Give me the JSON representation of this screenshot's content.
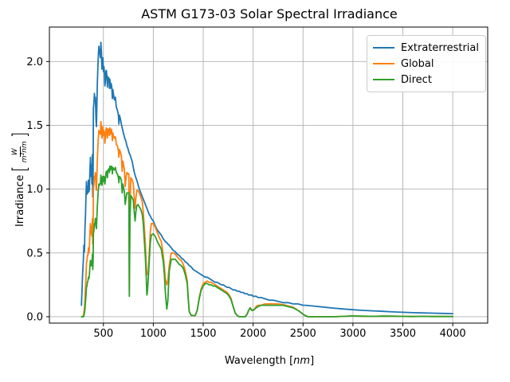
{
  "figure": {
    "xlabel_prefix": "Wavelength [",
    "xlabel_unit": "nm",
    "xlabel_suffix": "]",
    "ylabel_prefix": "Irradiance",
    "ylabel_open": "[",
    "ylabel_unit_num": "W",
    "ylabel_unit_den": "m²nm",
    "ylabel_close": "]",
    "background_color": "#ffffff",
    "grid_color": "#b0b0b0",
    "spine_color": "#000000"
  },
  "chart_data": {
    "type": "line",
    "title": "ASTM G173-03 Solar Spectral Irradiance",
    "xlabel": "Wavelength [nm]",
    "ylabel": "Irradiance [W/(m²·nm)]",
    "xlim": [
      -41,
      4350
    ],
    "ylim": [
      -0.05,
      2.27
    ],
    "x_ticks": [
      500,
      1000,
      1500,
      2000,
      2500,
      3000,
      3500,
      4000
    ],
    "y_ticks": [
      0.0,
      0.5,
      1.0,
      1.5,
      2.0
    ],
    "y_tick_labels": [
      "0.0",
      "0.5",
      "1.0",
      "1.5",
      "2.0"
    ],
    "grid": true,
    "legend_position": "upper right",
    "columns": [
      "wavelength_nm",
      "extraterrestrial",
      "global",
      "direct"
    ],
    "series": [
      {
        "name": "Extraterrestrial",
        "color": "#1f77b4",
        "column": 1
      },
      {
        "name": "Global",
        "color": "#ff7f0e",
        "column": 2
      },
      {
        "name": "Direct",
        "color": "#2ca02c",
        "column": 3
      }
    ],
    "points": [
      [
        280,
        0.09,
        0,
        0
      ],
      [
        290,
        0.31,
        0,
        0
      ],
      [
        300,
        0.46,
        0.01,
        0
      ],
      [
        305,
        0.56,
        0.03,
        0.01
      ],
      [
        310,
        0.51,
        0.07,
        0.03
      ],
      [
        315,
        0.69,
        0.13,
        0.06
      ],
      [
        320,
        0.78,
        0.22,
        0.11
      ],
      [
        325,
        0.92,
        0.3,
        0.16
      ],
      [
        330,
        1.06,
        0.42,
        0.23
      ],
      [
        335,
        0.96,
        0.44,
        0.24
      ],
      [
        340,
        1.02,
        0.48,
        0.27
      ],
      [
        345,
        0.97,
        0.48,
        0.28
      ],
      [
        350,
        1.07,
        0.54,
        0.31
      ],
      [
        355,
        0.98,
        0.5,
        0.3
      ],
      [
        360,
        1.0,
        0.55,
        0.33
      ],
      [
        365,
        1.16,
        0.66,
        0.4
      ],
      [
        370,
        1.25,
        0.73,
        0.44
      ],
      [
        375,
        1.1,
        0.65,
        0.4
      ],
      [
        380,
        1.19,
        0.71,
        0.44
      ],
      [
        385,
        1.04,
        0.63,
        0.4
      ],
      [
        390,
        1.27,
        0.77,
        0.49
      ],
      [
        393,
        0.94,
        0.57,
        0.37
      ],
      [
        397,
        1.15,
        0.7,
        0.45
      ],
      [
        400,
        1.63,
        1.0,
        0.65
      ],
      [
        405,
        1.68,
        1.04,
        0.68
      ],
      [
        410,
        1.75,
        1.1,
        0.73
      ],
      [
        415,
        1.7,
        1.09,
        0.73
      ],
      [
        420,
        1.72,
        1.13,
        0.77
      ],
      [
        425,
        1.56,
        1.03,
        0.71
      ],
      [
        430,
        1.49,
        0.99,
        0.69
      ],
      [
        435,
        1.66,
        1.11,
        0.78
      ],
      [
        440,
        1.84,
        1.24,
        0.87
      ],
      [
        445,
        1.97,
        1.34,
        0.95
      ],
      [
        450,
        2.06,
        1.41,
        1.0
      ],
      [
        455,
        2.12,
        1.46,
        1.04
      ],
      [
        460,
        2.07,
        1.44,
        1.03
      ],
      [
        465,
        2.06,
        1.45,
        1.04
      ],
      [
        470,
        2.03,
        1.43,
        1.04
      ],
      [
        475,
        2.15,
        1.53,
        1.11
      ],
      [
        480,
        2.07,
        1.48,
        1.08
      ],
      [
        485,
        1.94,
        1.4,
        1.03
      ],
      [
        490,
        1.97,
        1.43,
        1.06
      ],
      [
        495,
        2.03,
        1.49,
        1.1
      ],
      [
        500,
        1.92,
        1.42,
        1.06
      ],
      [
        505,
        1.96,
        1.46,
        1.1
      ],
      [
        510,
        1.92,
        1.44,
        1.09
      ],
      [
        515,
        1.81,
        1.36,
        1.04
      ],
      [
        520,
        1.85,
        1.4,
        1.08
      ],
      [
        525,
        1.92,
        1.46,
        1.12
      ],
      [
        530,
        1.93,
        1.48,
        1.14
      ],
      [
        535,
        1.89,
        1.46,
        1.13
      ],
      [
        540,
        1.8,
        1.4,
        1.09
      ],
      [
        545,
        1.88,
        1.47,
        1.15
      ],
      [
        550,
        1.87,
        1.46,
        1.15
      ],
      [
        555,
        1.87,
        1.47,
        1.16
      ],
      [
        560,
        1.79,
        1.42,
        1.13
      ],
      [
        565,
        1.86,
        1.48,
        1.18
      ],
      [
        570,
        1.79,
        1.43,
        1.15
      ],
      [
        575,
        1.83,
        1.46,
        1.17
      ],
      [
        580,
        1.82,
        1.47,
        1.18
      ],
      [
        585,
        1.79,
        1.44,
        1.17
      ],
      [
        590,
        1.71,
        1.38,
        1.12
      ],
      [
        595,
        1.78,
        1.44,
        1.17
      ],
      [
        600,
        1.75,
        1.42,
        1.16
      ],
      [
        610,
        1.7,
        1.4,
        1.15
      ],
      [
        620,
        1.72,
        1.41,
        1.17
      ],
      [
        630,
        1.64,
        1.35,
        1.13
      ],
      [
        640,
        1.62,
        1.34,
        1.12
      ],
      [
        650,
        1.58,
        1.3,
        1.09
      ],
      [
        655,
        1.51,
        1.25,
        1.05
      ],
      [
        660,
        1.58,
        1.31,
        1.1
      ],
      [
        670,
        1.55,
        1.29,
        1.09
      ],
      [
        680,
        1.51,
        1.26,
        1.07
      ],
      [
        688,
        1.48,
        1.14,
        0.97
      ],
      [
        695,
        1.46,
        1.22,
        1.04
      ],
      [
        700,
        1.44,
        1.2,
        1.02
      ],
      [
        710,
        1.41,
        1.15,
        0.98
      ],
      [
        718,
        1.39,
        1.02,
        0.88
      ],
      [
        727,
        1.37,
        1.09,
        0.93
      ],
      [
        735,
        1.34,
        1.13,
        0.97
      ],
      [
        745,
        1.32,
        1.12,
        0.97
      ],
      [
        755,
        1.29,
        1.12,
        0.97
      ],
      [
        760,
        1.28,
        0.21,
        0.16
      ],
      [
        766,
        1.27,
        0.9,
        0.78
      ],
      [
        775,
        1.25,
        1.09,
        0.95
      ],
      [
        790,
        1.21,
        1.07,
        0.93
      ],
      [
        800,
        1.17,
        1.04,
        0.91
      ],
      [
        810,
        1.13,
        0.92,
        0.81
      ],
      [
        817,
        1.11,
        0.85,
        0.75
      ],
      [
        825,
        1.09,
        0.93,
        0.82
      ],
      [
        835,
        1.07,
        0.99,
        0.87
      ],
      [
        845,
        1.04,
        0.99,
        0.88
      ],
      [
        860,
        1.0,
        0.97,
        0.86
      ],
      [
        875,
        0.97,
        0.94,
        0.84
      ],
      [
        890,
        0.94,
        0.9,
        0.8
      ],
      [
        900,
        0.92,
        0.81,
        0.72
      ],
      [
        910,
        0.9,
        0.7,
        0.6
      ],
      [
        920,
        0.88,
        0.57,
        0.47
      ],
      [
        930,
        0.86,
        0.39,
        0.3
      ],
      [
        935,
        0.85,
        0.35,
        0.17
      ],
      [
        940,
        0.84,
        0.33,
        0.19
      ],
      [
        950,
        0.82,
        0.35,
        0.3
      ],
      [
        960,
        0.8,
        0.51,
        0.45
      ],
      [
        970,
        0.79,
        0.66,
        0.58
      ],
      [
        980,
        0.77,
        0.73,
        0.64
      ],
      [
        1000,
        0.75,
        0.73,
        0.65
      ],
      [
        1020,
        0.71,
        0.7,
        0.63
      ],
      [
        1040,
        0.68,
        0.66,
        0.59
      ],
      [
        1060,
        0.66,
        0.62,
        0.56
      ],
      [
        1080,
        0.64,
        0.59,
        0.53
      ],
      [
        1100,
        0.61,
        0.48,
        0.43
      ],
      [
        1110,
        0.6,
        0.4,
        0.34
      ],
      [
        1120,
        0.59,
        0.3,
        0.2
      ],
      [
        1135,
        0.58,
        0.25,
        0.06
      ],
      [
        1145,
        0.57,
        0.28,
        0.12
      ],
      [
        1160,
        0.56,
        0.4,
        0.36
      ],
      [
        1180,
        0.54,
        0.5,
        0.45
      ],
      [
        1200,
        0.52,
        0.5,
        0.45
      ],
      [
        1220,
        0.51,
        0.49,
        0.45
      ],
      [
        1240,
        0.49,
        0.47,
        0.43
      ],
      [
        1260,
        0.48,
        0.45,
        0.41
      ],
      [
        1280,
        0.46,
        0.44,
        0.4
      ],
      [
        1300,
        0.45,
        0.41,
        0.38
      ],
      [
        1320,
        0.43,
        0.36,
        0.33
      ],
      [
        1340,
        0.42,
        0.28,
        0.26
      ],
      [
        1350,
        0.41,
        0.15,
        0.14
      ],
      [
        1360,
        0.4,
        0.04,
        0.04
      ],
      [
        1380,
        0.39,
        0.01,
        0.01
      ],
      [
        1400,
        0.37,
        0.01,
        0.01
      ],
      [
        1420,
        0.36,
        0.01,
        0.01
      ],
      [
        1440,
        0.35,
        0.05,
        0.05
      ],
      [
        1460,
        0.34,
        0.15,
        0.14
      ],
      [
        1480,
        0.33,
        0.22,
        0.21
      ],
      [
        1500,
        0.32,
        0.26,
        0.24
      ],
      [
        1520,
        0.31,
        0.27,
        0.26
      ],
      [
        1540,
        0.31,
        0.28,
        0.26
      ],
      [
        1560,
        0.3,
        0.27,
        0.25
      ],
      [
        1580,
        0.29,
        0.27,
        0.25
      ],
      [
        1600,
        0.28,
        0.26,
        0.24
      ],
      [
        1620,
        0.27,
        0.25,
        0.24
      ],
      [
        1640,
        0.27,
        0.24,
        0.23
      ],
      [
        1660,
        0.26,
        0.23,
        0.22
      ],
      [
        1680,
        0.25,
        0.22,
        0.21
      ],
      [
        1700,
        0.25,
        0.21,
        0.2
      ],
      [
        1720,
        0.24,
        0.2,
        0.19
      ],
      [
        1740,
        0.23,
        0.19,
        0.18
      ],
      [
        1760,
        0.23,
        0.17,
        0.16
      ],
      [
        1780,
        0.22,
        0.14,
        0.13
      ],
      [
        1800,
        0.21,
        0.08,
        0.08
      ],
      [
        1820,
        0.21,
        0.03,
        0.03
      ],
      [
        1840,
        0.2,
        0.01,
        0.01
      ],
      [
        1860,
        0.2,
        0,
        0
      ],
      [
        1880,
        0.19,
        0,
        0
      ],
      [
        1900,
        0.19,
        0,
        0
      ],
      [
        1920,
        0.18,
        0,
        0
      ],
      [
        1940,
        0.18,
        0.02,
        0.02
      ],
      [
        1955,
        0.17,
        0.05,
        0.05
      ],
      [
        1970,
        0.17,
        0.07,
        0.07
      ],
      [
        1985,
        0.17,
        0.055,
        0.05
      ],
      [
        2000,
        0.16,
        0.05,
        0.05
      ],
      [
        2015,
        0.16,
        0.06,
        0.06
      ],
      [
        2030,
        0.16,
        0.08,
        0.07
      ],
      [
        2050,
        0.15,
        0.09,
        0.08
      ],
      [
        2080,
        0.15,
        0.09,
        0.09
      ],
      [
        2120,
        0.14,
        0.1,
        0.09
      ],
      [
        2160,
        0.13,
        0.1,
        0.09
      ],
      [
        2200,
        0.13,
        0.1,
        0.09
      ],
      [
        2250,
        0.12,
        0.1,
        0.09
      ],
      [
        2300,
        0.11,
        0.095,
        0.09
      ],
      [
        2350,
        0.11,
        0.085,
        0.08
      ],
      [
        2400,
        0.1,
        0.075,
        0.07
      ],
      [
        2450,
        0.1,
        0.05,
        0.05
      ],
      [
        2500,
        0.09,
        0.02,
        0.02
      ],
      [
        2520,
        0.09,
        0.01,
        0.01
      ],
      [
        2550,
        0.088,
        0,
        0
      ],
      [
        2600,
        0.084,
        0,
        0
      ],
      [
        2700,
        0.076,
        0,
        0
      ],
      [
        2800,
        0.068,
        0,
        0
      ],
      [
        2900,
        0.061,
        0.003,
        0.003
      ],
      [
        3000,
        0.055,
        0.006,
        0.006
      ],
      [
        3100,
        0.05,
        0.004,
        0.004
      ],
      [
        3200,
        0.046,
        0.003,
        0.003
      ],
      [
        3300,
        0.042,
        0.005,
        0.005
      ],
      [
        3400,
        0.038,
        0.004,
        0.004
      ],
      [
        3500,
        0.035,
        0.003,
        0.003
      ],
      [
        3600,
        0.032,
        0.002,
        0.002
      ],
      [
        3700,
        0.03,
        0.003,
        0.003
      ],
      [
        3800,
        0.028,
        0.002,
        0.002
      ],
      [
        3900,
        0.026,
        0.002,
        0.002
      ],
      [
        4000,
        0.024,
        0.002,
        0.002
      ]
    ]
  }
}
